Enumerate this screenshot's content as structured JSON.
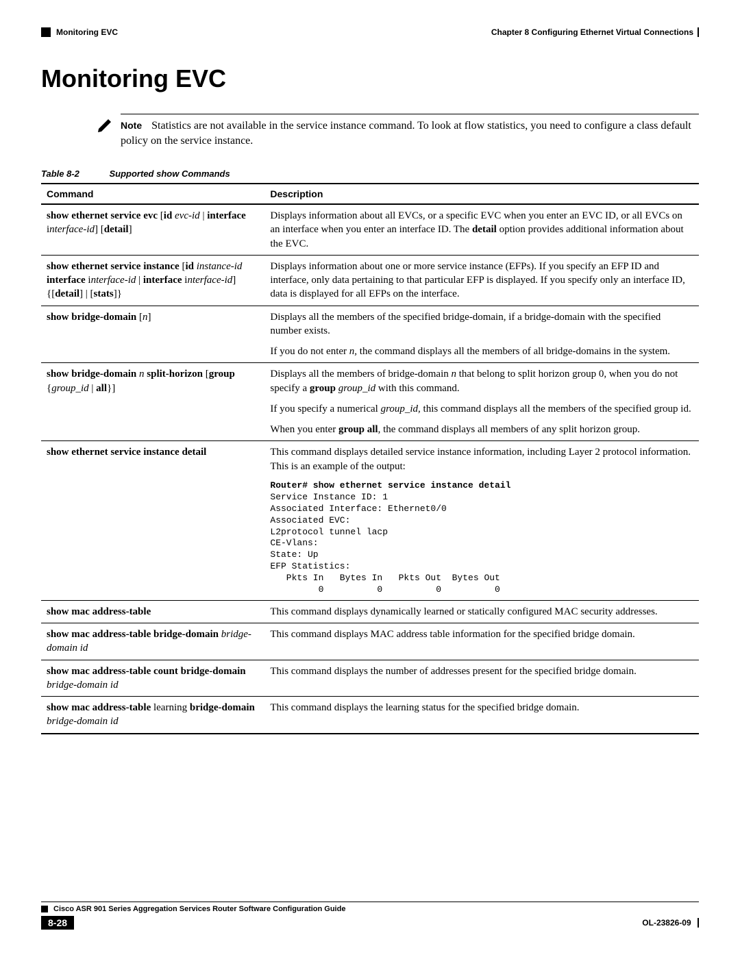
{
  "header": {
    "section_marker": "Monitoring EVC",
    "chapter": "Chapter 8    Configuring Ethernet Virtual Connections"
  },
  "title": "Monitoring EVC",
  "note": {
    "label": "Note",
    "text": "Statistics are not available in the service instance command. To look at flow statistics, you need to configure a class default policy on the service instance."
  },
  "table": {
    "caption_number": "Table 8-2",
    "caption_title": "Supported show Commands",
    "columns": {
      "command": "Command",
      "description": "Description"
    },
    "rows": [
      {
        "cmd_html": "<span class=\"bold\">show ethernet service evc</span> [<span class=\"bold\">id</span> <span class=\"ital\">evc-id</span> | <span class=\"bold\">interface</span> i<span class=\"ital\">nterface-id</span>] [<span class=\"bold\">detail</span>]",
        "desc_html": "Displays information about all EVCs, or a specific EVC when you enter an EVC ID, or all EVCs on an interface when you enter an interface ID. The <span class=\"bold\">detail</span> option provides additional information about the EVC."
      },
      {
        "cmd_html": "<span class=\"bold\">show ethernet service instance</span> [<span class=\"bold\">id</span> <span class=\"ital\">instance-id</span> <span class=\"bold\">interface</span> i<span class=\"ital\">nterface-id</span> | <span class=\"bold\">interface</span> i<span class=\"ital\">nterface-id</span>] {[<span class=\"bold\">detail</span>] | [<span class=\"bold\">stats</span>]}",
        "desc_html": "Displays information about one or more service instance (EFPs). If you specify an EFP ID and interface, only data pertaining to that particular EFP is displayed. If you specify only an interface ID, data is displayed for all EFPs on the interface."
      },
      {
        "cmd_html": "<span class=\"bold\">show bridge-domain</span> [<span class=\"ital\">n</span>]",
        "desc_html": "<div class=\"desc-para\">Displays all the members of the specified bridge-domain, if a bridge-domain with the specified number exists.</div><div class=\"desc-para\">If you do not enter <span class=\"ital\">n,</span> the command displays all the members of all bridge-domains in the system.</div>"
      },
      {
        "cmd_html": "<span class=\"bold\">show bridge-domain</span> <span class=\"ital\">n</span> <span class=\"bold\">split-horizon</span> [<span class=\"bold\">group</span> {<span class=\"ital\">group_id</span> | <span class=\"bold\">all</span>}]",
        "desc_html": "<div class=\"desc-para\">Displays all the members of bridge-domain <span class=\"ital\">n</span> that belong to split horizon group 0, when you do not specify a <span class=\"bold\">group</span> <span class=\"ital\">group_id</span> with this command.</div><div class=\"desc-para\">If you specify a numerical <span class=\"ital\">group_id</span>, this command displays all the members of the specified group id.</div><div class=\"desc-para\">When you enter <span class=\"bold\">group all</span>, the command displays all members of any split horizon group.</div>"
      },
      {
        "cmd_html": "<span class=\"bold\">show ethernet service instance detail</span>",
        "desc_html": "<div class=\"desc-para\">This command displays detailed service instance information, including Layer 2 protocol information. This is an example of the output:</div><pre class=\"console\"><span class=\"cb\">Router# show ethernet service instance detail</span>\nService Instance ID: 1\nAssociated Interface: Ethernet0/0\nAssociated EVC:\nL2protocol tunnel lacp\nCE-Vlans:\nState: Up\nEFP Statistics:\n   Pkts In   Bytes In   Pkts Out  Bytes Out\n         0          0          0          0</pre>"
      },
      {
        "cmd_html": "<span class=\"bold\">show mac address-table</span>",
        "desc_html": "This command displays dynamically learned or statically configured MAC security addresses."
      },
      {
        "cmd_html": "<span class=\"bold\">show mac address-table bridge-domain</span> <span class=\"ital\">bridge-domain id</span>",
        "desc_html": "This command displays MAC address table information for the specified bridge domain."
      },
      {
        "cmd_html": "<span class=\"bold\">show mac address-table count bridge-domain</span> <span class=\"ital\">bridge-domain id</span>",
        "desc_html": "This command displays the number of addresses present for the specified bridge domain."
      },
      {
        "cmd_html": "<span class=\"bold\">show mac address-table</span> learning <span class=\"bold\">bridge-domain</span> <span class=\"ital\">bridge-domain id</span>",
        "desc_html": "This command displays the learning status for the specified bridge domain."
      }
    ]
  },
  "footer": {
    "guide_title": "Cisco ASR 901 Series Aggregation Services Router Software Configuration Guide",
    "page_number": "8-28",
    "doc_id": "OL-23826-09"
  }
}
